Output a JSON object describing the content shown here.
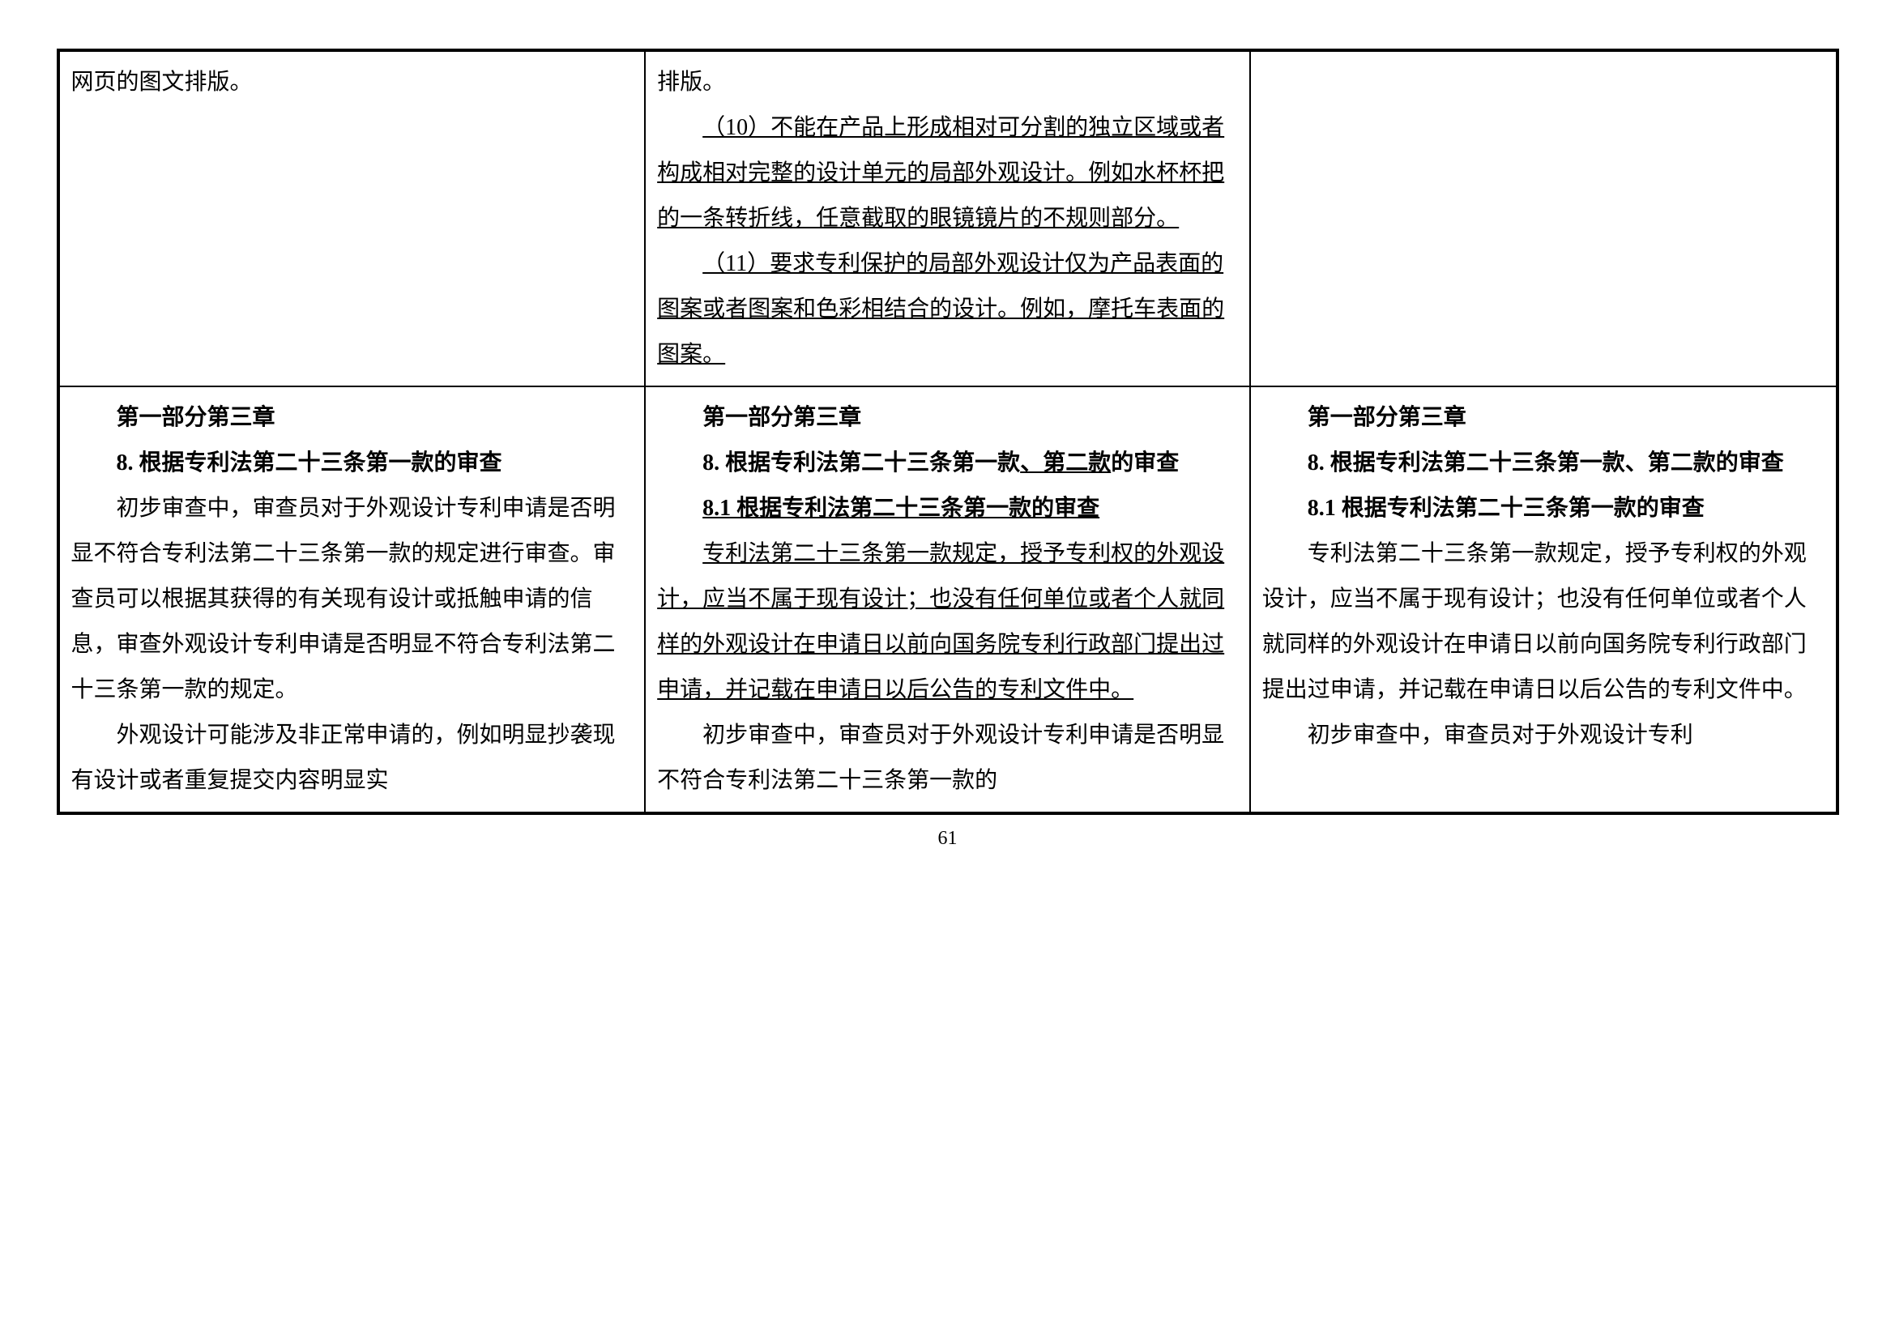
{
  "row1": {
    "col1": {
      "p1": "网页的图文排版。"
    },
    "col2": {
      "p1": "排版。",
      "p2": "（10）不能在产品上形成相对可分割的独立区域或者构成相对完整的设计单元的局部外观设计。例如水杯杯把的一条转折线，任意截取的眼镜镜片的不规则部分。",
      "p3": "（11）要求专利保护的局部外观设计仅为产品表面的图案或者图案和色彩相结合的设计。例如，摩托车表面的图案。"
    },
    "col3": {}
  },
  "row2": {
    "col1": {
      "h1": "第一部分第三章",
      "h2": "8. 根据专利法第二十三条第一款的审查",
      "p1": "初步审查中，审查员对于外观设计专利申请是否明显不符合专利法第二十三条第一款的规定进行审查。审查员可以根据其获得的有关现有设计或抵触申请的信息，审查外观设计专利申请是否明显不符合专利法第二十三条第一款的规定。",
      "p2": "外观设计可能涉及非正常申请的，例如明显抄袭现有设计或者重复提交内容明显实"
    },
    "col2": {
      "h1": "第一部分第三章",
      "h2a": "8. 根据专利法第二十三条第一款",
      "h2b": "、第二款",
      "h2c": "的审查",
      "h3": "8.1 根据专利法第二十三条第一款的审查",
      "p1": "专利法第二十三条第一款规定，授予专利权的外观设计，应当不属于现有设计；也没有任何单位或者个人就同样的外观设计在申请日以前向国务院专利行政部门提出过申请，并记载在申请日以后公告的专利文件中。",
      "p2": "初步审查中，审查员对于外观设计专利申请是否明显不符合专利法第二十三条第一款的"
    },
    "col3": {
      "h1": "第一部分第三章",
      "h2": "8. 根据专利法第二十三条第一款、第二款的审查",
      "h3": "8.1 根据专利法第二十三条第一款的审查",
      "p1": "专利法第二十三条第一款规定，授予专利权的外观设计，应当不属于现有设计；也没有任何单位或者个人就同样的外观设计在申请日以前向国务院专利行政部门提出过申请，并记载在申请日以后公告的专利文件中。",
      "p2": "初步审查中，审查员对于外观设计专利"
    }
  },
  "pageNumber": "61"
}
